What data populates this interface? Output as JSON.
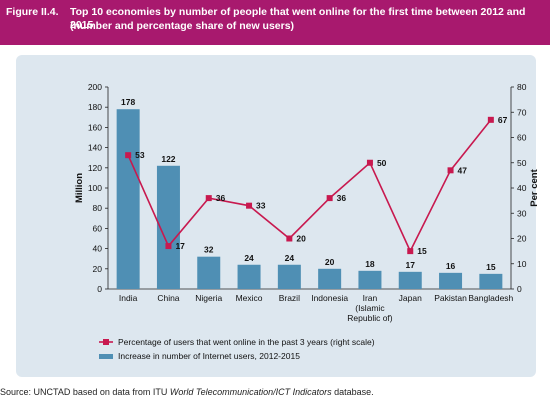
{
  "header": {
    "figure_label": "Figure II.4.",
    "title": "Top 10 economies by number of people that went online for the first time between 2012 and 2015",
    "subtitle": "(number and percentage share of new users)"
  },
  "source": {
    "prefix": "Source: UNCTAD based on data from ITU ",
    "italic": "World Telecommunication/ICT Indicators",
    "suffix": " database."
  },
  "colors": {
    "header_bg": "#a8196e",
    "bar": "#4f8fb4",
    "line": "#c8194f",
    "panel_bg": "#dde7ef"
  },
  "chart_data": {
    "type": "bar",
    "categories": [
      "India",
      "China",
      "Nigeria",
      "Mexico",
      "Brazil",
      "Indonesia",
      "Iran (Islamic Republic of)",
      "Japan",
      "Pakistan",
      "Bangladesh"
    ],
    "category_lines": [
      [
        "India"
      ],
      [
        "China"
      ],
      [
        "Nigeria"
      ],
      [
        "Mexico"
      ],
      [
        "Brazil"
      ],
      [
        "Indonesia"
      ],
      [
        "Iran",
        "(Islamic",
        "Republic of)"
      ],
      [
        "Japan"
      ],
      [
        "Pakistan"
      ],
      [
        "Bangladesh"
      ]
    ],
    "series": [
      {
        "name": "Increase in number of Internet users, 2012-2015",
        "kind": "bar",
        "axis": "left",
        "values": [
          178,
          122,
          32,
          24,
          24,
          20,
          18,
          17,
          16,
          15
        ],
        "labels": [
          "178",
          "122",
          "32",
          "24",
          "24",
          "20",
          "18",
          "17",
          "16",
          "15"
        ]
      },
      {
        "name": "Percentage of users that went online in the past 3 years (right scale)",
        "kind": "line",
        "axis": "right",
        "values": [
          53,
          17,
          36,
          33,
          20,
          36,
          50,
          15,
          47,
          67
        ],
        "labels": [
          "53",
          "17",
          "36",
          "33",
          "20",
          "36",
          "50",
          "15",
          "47",
          "67"
        ]
      }
    ],
    "ylabel": "Million",
    "y2label": "Per cent",
    "ylim": [
      0,
      200
    ],
    "y2lim": [
      0,
      80
    ],
    "yticks": [
      "0",
      "20",
      "40",
      "60",
      "80",
      "100",
      "120",
      "140",
      "160",
      "180",
      "200"
    ],
    "y2ticks": [
      "0",
      "10",
      "20",
      "30",
      "40",
      "50",
      "60",
      "70",
      "80"
    ],
    "grid": false,
    "legend_position": "bottom-left"
  }
}
